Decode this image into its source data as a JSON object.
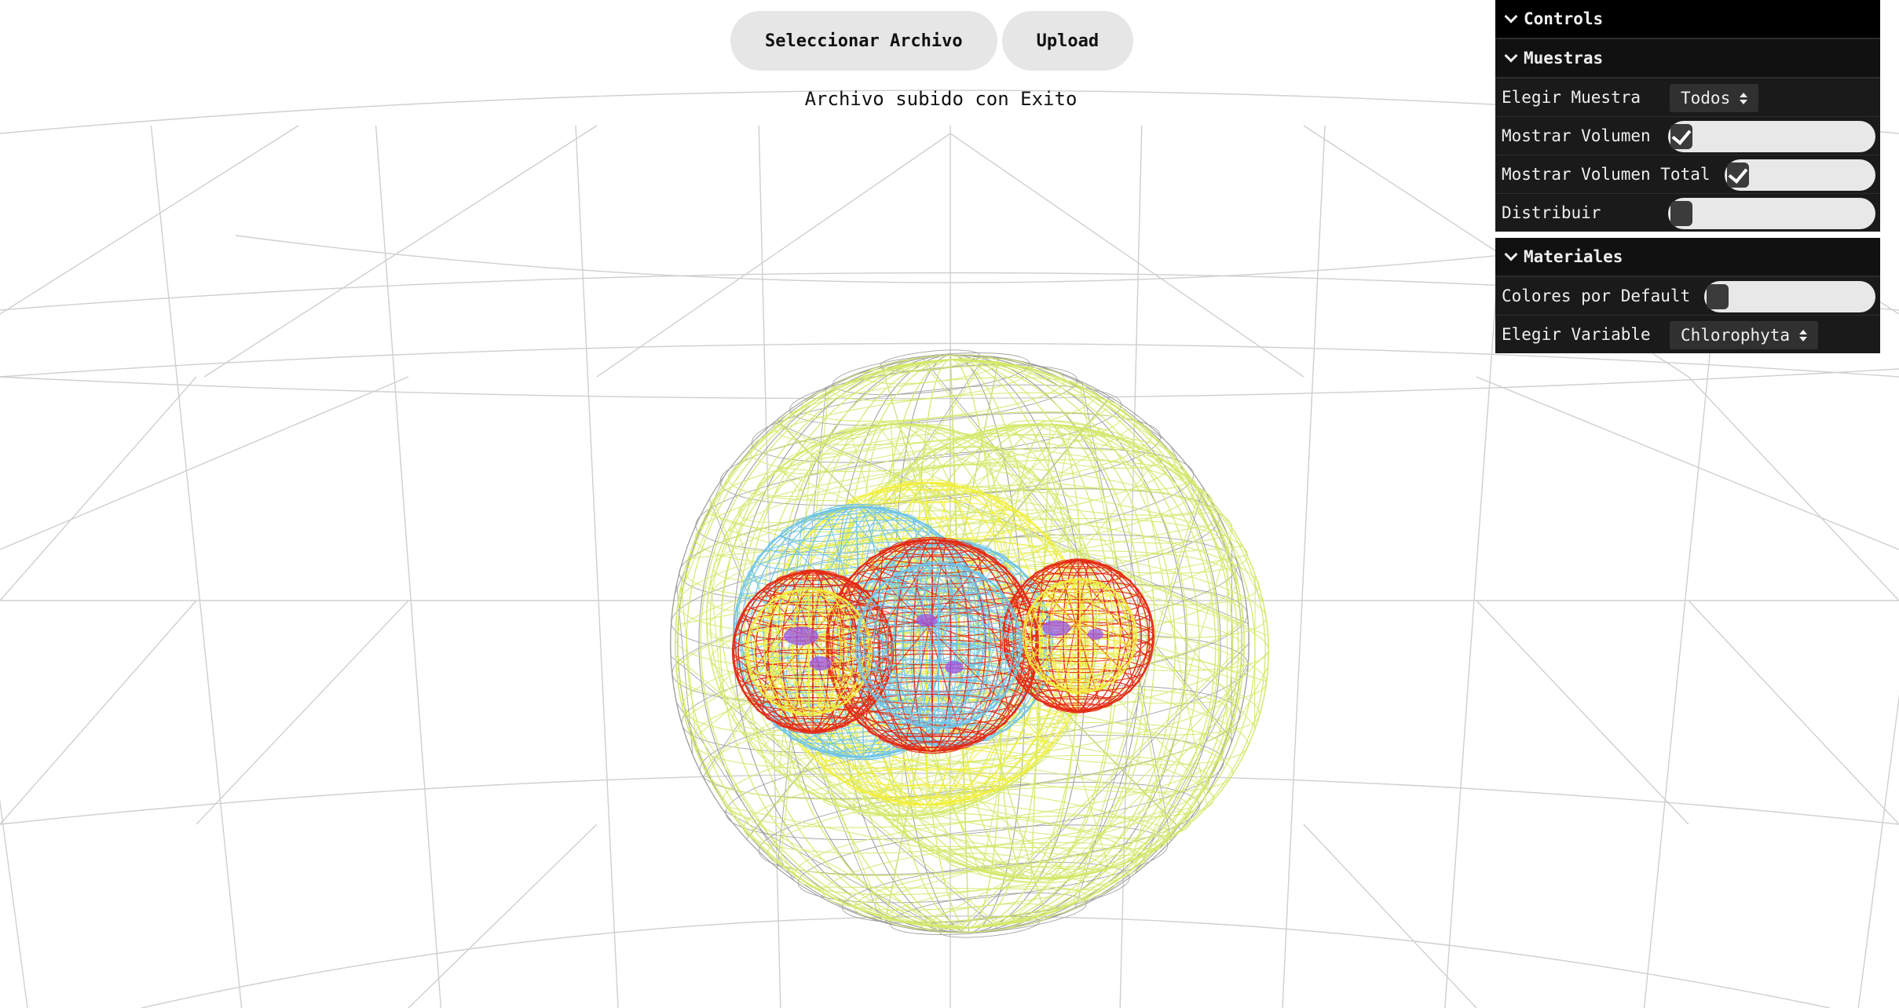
{
  "toolbar": {
    "select_file_label": "Seleccionar Archivo",
    "upload_label": "Upload"
  },
  "status": {
    "message": "Archivo subido con Exito"
  },
  "gui": {
    "root_title": "Controls",
    "muestras": {
      "title": "Muestras",
      "elegir_muestra_label": "Elegir Muestra",
      "elegir_muestra_value": "Todos",
      "mostrar_volumen_label": "Mostrar Volumen",
      "mostrar_volumen_checked": true,
      "mostrar_volumen_total_label": "Mostrar Volumen Total",
      "mostrar_volumen_total_checked": true,
      "distribuir_label": "Distribuir",
      "distribuir_checked": false
    },
    "materiales": {
      "title": "Materiales",
      "colores_default_label": "Colores por Default",
      "colores_default_checked": false,
      "elegir_variable_label": "Elegir Variable",
      "elegir_variable_value": "Chlorophyta"
    }
  },
  "colors": {
    "background": "#ffffff",
    "grid": "#cfcfcf",
    "outer_wire": "#9a9a9a",
    "total_volume": "#d4e86a",
    "yellow": "#f2ef3a",
    "cyan": "#6ec4ea",
    "red": "#e42a14",
    "violet": "#9a55e6"
  }
}
